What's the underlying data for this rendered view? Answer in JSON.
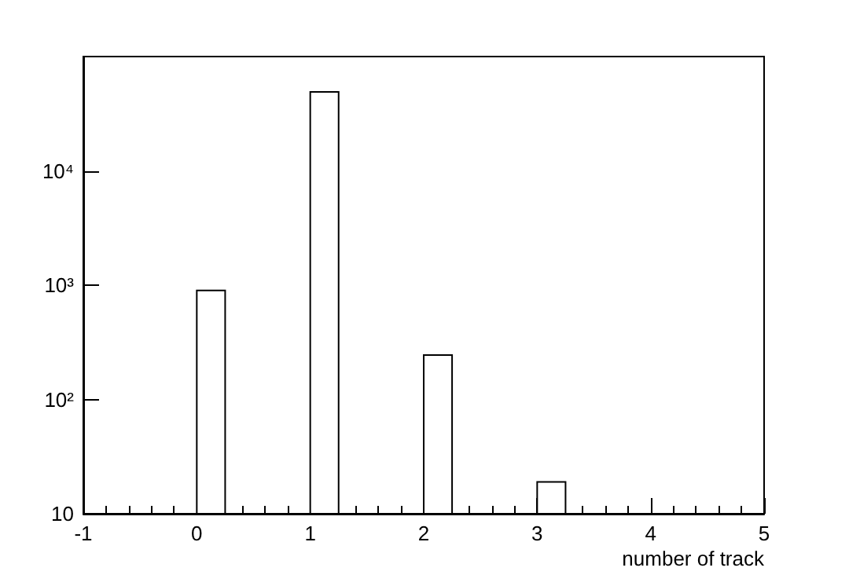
{
  "chart_data": {
    "type": "histogram",
    "xlabel": "number of track",
    "bins": [
      -1,
      -0.75,
      -0.5,
      -0.25,
      0,
      0.25,
      0.5,
      0.75,
      1,
      1.25,
      1.5,
      1.75,
      2,
      2.25,
      2.5,
      2.75,
      3,
      3.25,
      3.5,
      3.75,
      4,
      4.25,
      4.5,
      4.75,
      5
    ],
    "values": [
      null,
      null,
      null,
      null,
      900,
      null,
      null,
      null,
      49000,
      null,
      null,
      null,
      245,
      null,
      null,
      null,
      19,
      null,
      null,
      null,
      null,
      null,
      null,
      null
    ],
    "color": "#000000",
    "xlim": [
      -1,
      5
    ],
    "xticks": [
      -1,
      0,
      1,
      2,
      3,
      4,
      5
    ],
    "ylim": [
      10,
      100000
    ],
    "yticks": [
      10,
      {
        "value": 100,
        "label": "10²"
      },
      {
        "value": 1000,
        "label": "10³"
      },
      {
        "value": 10000,
        "label": "10⁴"
      }
    ],
    "log": "y",
    "grid": false
  }
}
